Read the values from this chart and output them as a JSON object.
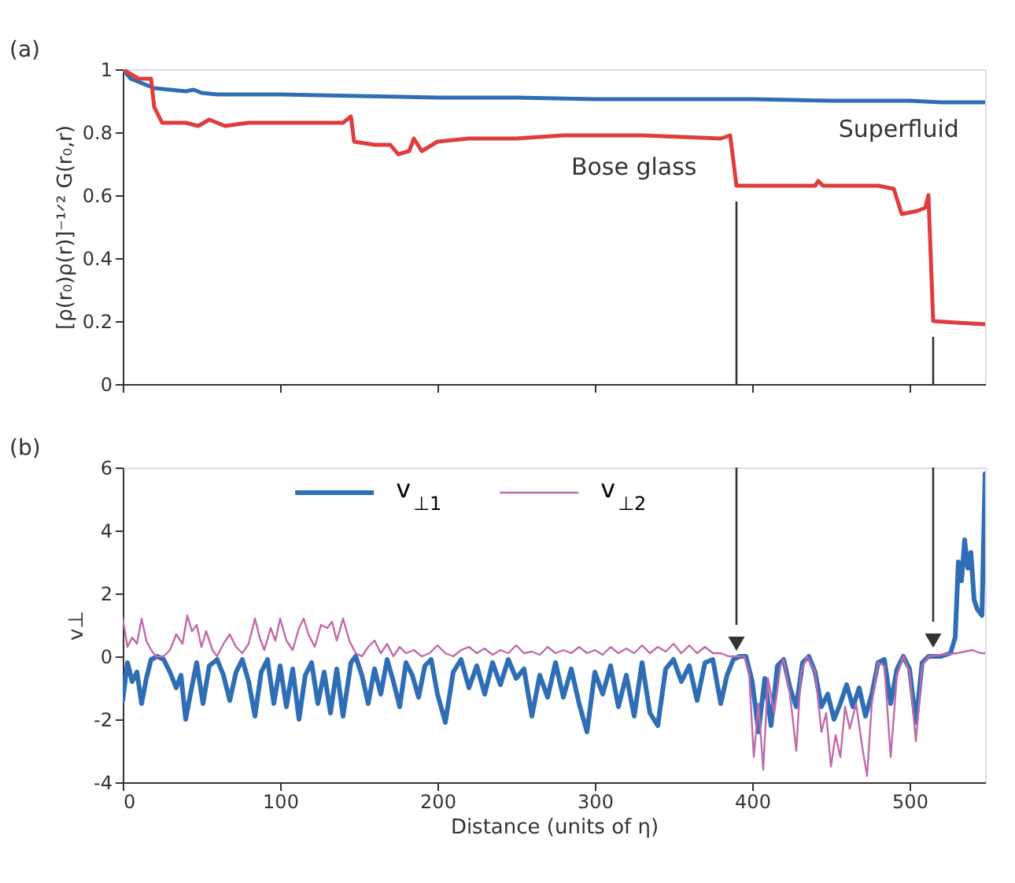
{
  "chart_data": [
    {
      "type": "line",
      "ylabel": "[ρ(r₀)ρ(r)]⁻¹ᐟ² G(r₀,r)",
      "xlim": [
        0,
        548
      ],
      "xticks": [
        0,
        100,
        200,
        300,
        400,
        500
      ],
      "ylim": [
        0,
        1
      ],
      "yticks": [
        0,
        0.2,
        0.4,
        0.6,
        0.8,
        1
      ],
      "tick_labels": "y",
      "grid": false,
      "annotations": [
        "(a)",
        "Superfluid",
        "Bose glass"
      ],
      "series": [
        {
          "color": "#2f6db5",
          "x": [
            0,
            5,
            10,
            15,
            20,
            30,
            40,
            45,
            50,
            60,
            80,
            100,
            150,
            200,
            250,
            300,
            350,
            400,
            450,
            500,
            520,
            548
          ],
          "values": [
            1.0,
            0.97,
            0.96,
            0.95,
            0.94,
            0.935,
            0.93,
            0.935,
            0.925,
            0.92,
            0.92,
            0.92,
            0.915,
            0.91,
            0.91,
            0.905,
            0.905,
            0.905,
            0.9,
            0.9,
            0.895,
            0.895
          ]
        },
        {
          "color": "#e03c3c",
          "x": [
            0,
            10,
            18,
            20,
            25,
            40,
            48,
            55,
            65,
            80,
            100,
            140,
            145,
            147,
            160,
            170,
            175,
            182,
            185,
            190,
            200,
            220,
            250,
            280,
            330,
            380,
            386,
            390,
            420,
            440,
            442,
            445,
            480,
            490,
            495,
            505,
            510,
            512,
            515,
            530,
            548
          ],
          "values": [
            1.0,
            0.97,
            0.97,
            0.88,
            0.83,
            0.83,
            0.82,
            0.84,
            0.82,
            0.83,
            0.83,
            0.83,
            0.85,
            0.77,
            0.76,
            0.76,
            0.73,
            0.74,
            0.78,
            0.74,
            0.77,
            0.78,
            0.78,
            0.79,
            0.79,
            0.78,
            0.79,
            0.63,
            0.63,
            0.63,
            0.645,
            0.63,
            0.63,
            0.62,
            0.54,
            0.55,
            0.56,
            0.6,
            0.2,
            0.195,
            0.19
          ]
        }
      ]
    },
    {
      "type": "line",
      "xlabel": "Distance (units of η)",
      "ylabel": "v⊥",
      "xlim": [
        0,
        548
      ],
      "xticks": [
        0,
        100,
        200,
        300,
        400,
        500
      ],
      "ylim": [
        -4,
        6
      ],
      "yticks": [
        -4,
        -2,
        0,
        2,
        4,
        6
      ],
      "grid": false,
      "legend": "top",
      "annotations": [
        "(b)"
      ],
      "series": [
        {
          "name": "v$_{⊥1}$",
          "color": "#2f6db5",
          "x": [
            0,
            3,
            6,
            9,
            12,
            15,
            18,
            22,
            26,
            30,
            34,
            37,
            40,
            43,
            47,
            51,
            55,
            60,
            64,
            68,
            72,
            76,
            80,
            84,
            88,
            92,
            96,
            100,
            104,
            108,
            112,
            116,
            120,
            124,
            128,
            132,
            136,
            140,
            145,
            148,
            152,
            156,
            160,
            164,
            168,
            172,
            176,
            180,
            184,
            188,
            192,
            196,
            200,
            205,
            210,
            215,
            220,
            225,
            230,
            235,
            240,
            245,
            250,
            255,
            260,
            265,
            270,
            275,
            280,
            285,
            290,
            295,
            300,
            305,
            310,
            315,
            320,
            325,
            330,
            335,
            340,
            345,
            350,
            355,
            360,
            365,
            370,
            375,
            380,
            384,
            388,
            392,
            396,
            400,
            404,
            408,
            412,
            416,
            420,
            424,
            428,
            432,
            436,
            440,
            444,
            448,
            452,
            456,
            460,
            464,
            468,
            472,
            476,
            480,
            484,
            488,
            492,
            496,
            500,
            504,
            508,
            512,
            520,
            526,
            529,
            531,
            533,
            535,
            537,
            539,
            541,
            543,
            546,
            548
          ],
          "values": [
            -1.4,
            -0.2,
            -0.8,
            -0.5,
            -1.5,
            -0.7,
            -0.1,
            0,
            -0.1,
            -0.5,
            -1,
            -0.6,
            -2,
            -1.2,
            -0.2,
            -1.5,
            -0.3,
            -0.1,
            -0.6,
            -1.4,
            -0.5,
            -0.1,
            -0.8,
            -1.9,
            -0.5,
            -0.1,
            -1.5,
            -0.3,
            -1.6,
            -0.4,
            -2,
            -0.6,
            -0.2,
            -1.5,
            -0.5,
            -1.8,
            -0.4,
            -1.9,
            -0.2,
            0,
            -0.6,
            -1.5,
            -0.4,
            -1.2,
            -0.1,
            -0.8,
            -1.6,
            -0.2,
            -0.6,
            -1.3,
            -0.3,
            -0.1,
            -1.2,
            -2.1,
            -0.5,
            -0.1,
            -1,
            -0.3,
            -1.2,
            -0.2,
            -0.9,
            -0.1,
            -0.7,
            -0.4,
            -1.9,
            -0.6,
            -1.3,
            -0.2,
            -1.3,
            -0.4,
            -1.5,
            -2.4,
            -0.5,
            -1.2,
            -0.3,
            -1.6,
            -0.6,
            -1.9,
            -0.2,
            -1.8,
            -2.2,
            -0.4,
            -0.1,
            -0.8,
            -0.3,
            -1.4,
            -0.2,
            -0.1,
            -1.5,
            -0.6,
            -0.1,
            0,
            0,
            -0.8,
            -2.4,
            -0.7,
            -2.2,
            -0.3,
            -0.1,
            -1,
            -1.6,
            -0.2,
            0,
            -0.5,
            -1.6,
            -1.2,
            -2,
            -1.5,
            -0.9,
            -1.6,
            -1,
            -1.9,
            -1.2,
            -0.2,
            -0.1,
            -1.5,
            -0.4,
            0,
            -0.4,
            -2.1,
            -0.2,
            0,
            0,
            0.1,
            0.6,
            3.0,
            2.4,
            3.7,
            2.8,
            3.3,
            1.8,
            1.5,
            1.3,
            5.8
          ]
        },
        {
          "name": "v$_{⊥2}$",
          "color": "#c06aaa",
          "x": [
            0,
            3,
            6,
            9,
            12,
            15,
            18,
            21,
            26,
            30,
            34,
            38,
            41,
            44,
            47,
            50,
            53,
            57,
            60,
            64,
            68,
            72,
            76,
            80,
            84,
            87,
            90,
            94,
            97,
            100,
            104,
            108,
            112,
            115,
            118,
            122,
            126,
            130,
            133,
            136,
            140,
            144,
            148,
            152,
            156,
            160,
            164,
            168,
            172,
            176,
            180,
            185,
            190,
            195,
            200,
            205,
            210,
            215,
            220,
            225,
            230,
            235,
            240,
            245,
            250,
            255,
            260,
            265,
            270,
            275,
            280,
            285,
            290,
            295,
            300,
            305,
            310,
            315,
            320,
            325,
            330,
            335,
            340,
            345,
            350,
            355,
            360,
            365,
            370,
            375,
            380,
            385,
            390,
            395,
            398,
            401,
            404,
            407,
            410,
            414,
            418,
            420,
            424,
            428,
            431,
            435,
            440,
            444,
            447,
            450,
            453,
            456,
            459,
            462,
            466,
            470,
            473,
            476,
            480,
            484,
            488,
            492,
            496,
            500,
            504,
            508,
            512,
            520,
            530,
            540,
            545,
            548
          ],
          "values": [
            1.2,
            0.3,
            0.6,
            0.4,
            1.2,
            0.5,
            0.2,
            0,
            0,
            0.2,
            0.7,
            0.4,
            1.3,
            0.8,
            1.0,
            0.3,
            0.8,
            0.2,
            0,
            0.4,
            0.7,
            0.3,
            0.1,
            0.4,
            1.2,
            0.6,
            0.2,
            0.9,
            0.5,
            1.2,
            0.5,
            0.2,
            0.9,
            1.2,
            0.7,
            0.3,
            1.0,
            0.9,
            1.1,
            0.5,
            1.2,
            0.5,
            0.1,
            0,
            0.3,
            0.5,
            0.1,
            0.4,
            0,
            0.3,
            0.1,
            0.2,
            0,
            0.1,
            0.35,
            0.1,
            0,
            0.2,
            0.3,
            0.1,
            0.25,
            0.05,
            0.2,
            0.1,
            0.35,
            0.1,
            0.15,
            0.05,
            0.3,
            0.1,
            0.2,
            0.1,
            0.3,
            0.1,
            0.2,
            0.05,
            0.3,
            0.1,
            0.25,
            0.1,
            0.35,
            0.1,
            0.3,
            0.15,
            0.4,
            0.1,
            0.35,
            0.1,
            0.3,
            0.1,
            0.1,
            0,
            0,
            0,
            -0.5,
            -3.2,
            -1.5,
            -3.6,
            -0.7,
            -1.8,
            -0.3,
            -0.1,
            -1.2,
            -3.0,
            -0.5,
            0,
            -0.5,
            -2.4,
            -1.8,
            -3.5,
            -2.5,
            -3.2,
            -1.6,
            -2.3,
            -1.5,
            -2.9,
            -3.8,
            -1.5,
            -0.2,
            -0.3,
            -3.2,
            -0.6,
            0,
            -0.5,
            -2.7,
            -0.3,
            0,
            0.05,
            0.1,
            0.2,
            0.1,
            0.1
          ]
        }
      ]
    }
  ]
}
